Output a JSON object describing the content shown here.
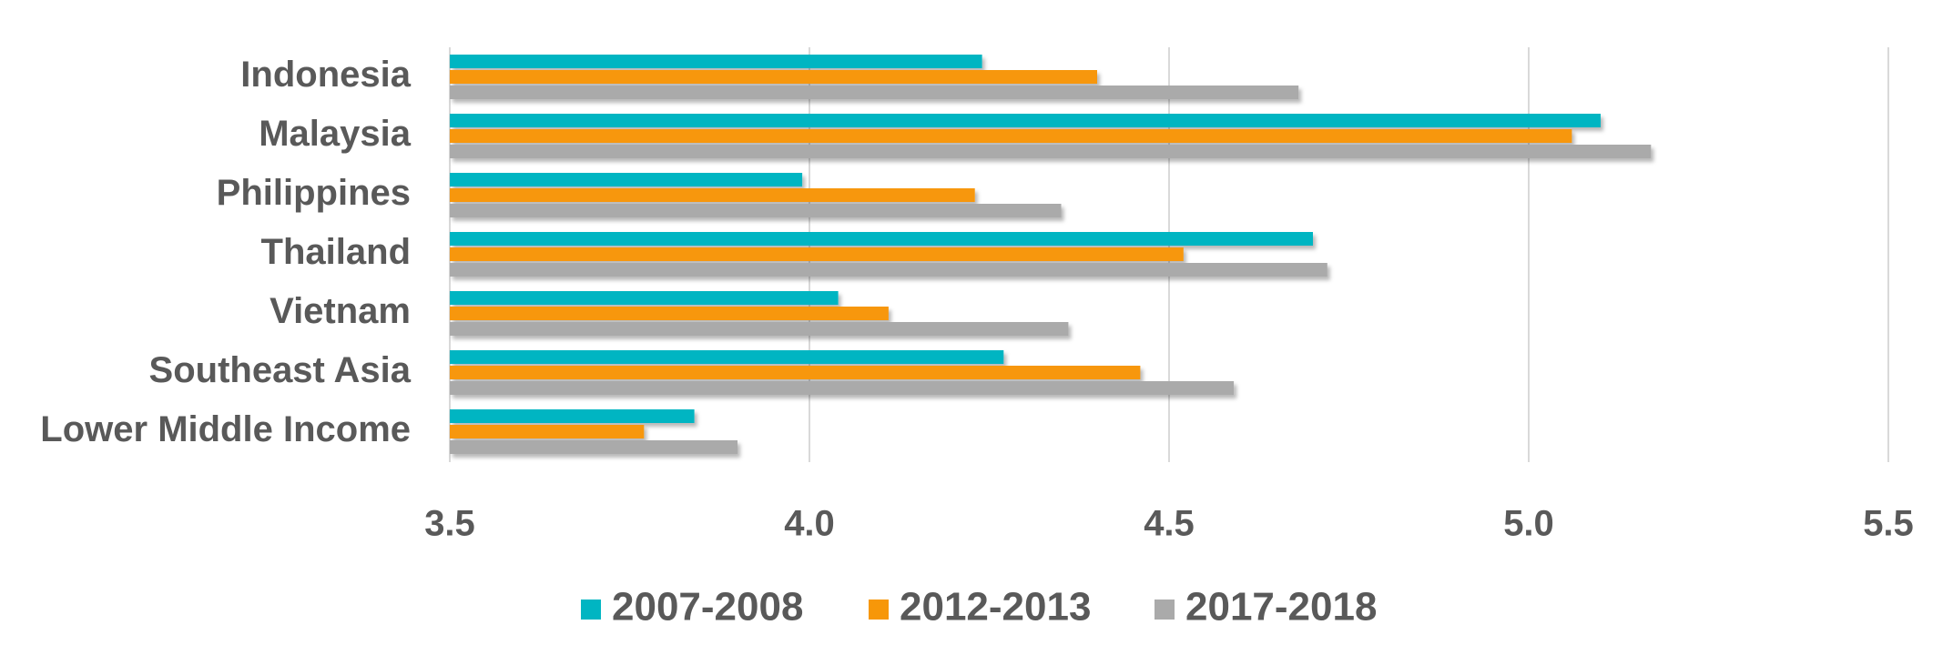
{
  "chart_data": {
    "type": "bar",
    "orientation": "horizontal",
    "title": "",
    "xlabel": "",
    "ylabel": "",
    "categories": [
      "Indonesia",
      "Malaysia",
      "Philippines",
      "Thailand",
      "Vietnam",
      "Southeast Asia",
      "Lower Middle Income"
    ],
    "series": [
      {
        "name": "2007-2008",
        "color": "#00B5C2",
        "values": [
          4.24,
          5.1,
          3.99,
          4.7,
          4.04,
          4.27,
          3.84
        ]
      },
      {
        "name": "2012-2013",
        "color": "#F79709",
        "values": [
          4.4,
          5.06,
          4.23,
          4.52,
          4.11,
          4.46,
          3.77
        ]
      },
      {
        "name": "2017-2018",
        "color": "#AAAAAA",
        "values": [
          4.68,
          5.17,
          4.35,
          4.72,
          4.36,
          4.59,
          3.9
        ]
      }
    ],
    "xlim": [
      3.5,
      5.5
    ],
    "ticks": [
      "3.5",
      "4.0",
      "4.5",
      "5.0",
      "5.5"
    ],
    "grid": "vertical",
    "legend_position": "bottom"
  }
}
